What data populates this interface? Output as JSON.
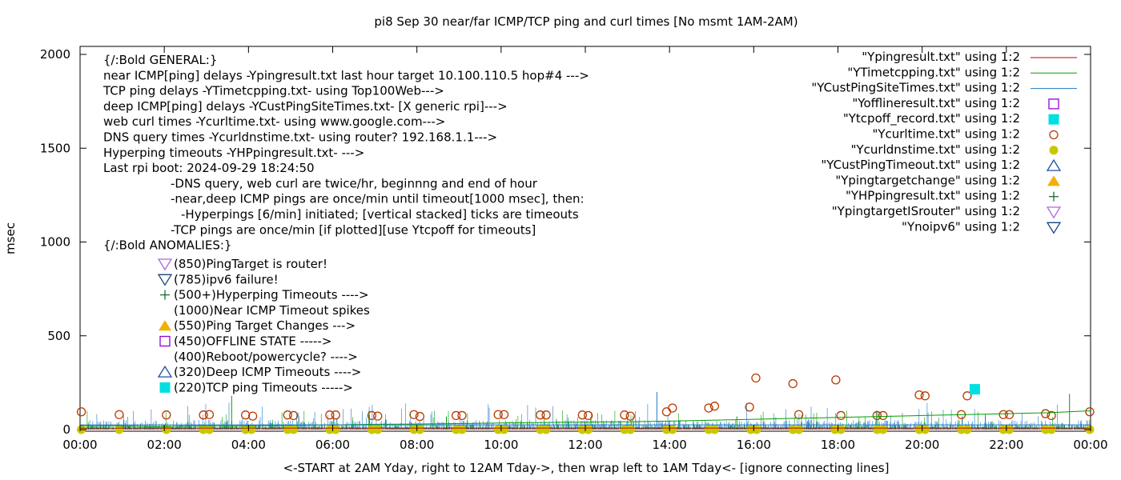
{
  "chart_data": {
    "type": "scatter",
    "title": "pi8 Sep 30  near/far ICMP/TCP ping and curl times [No msmt 1AM-2AM)",
    "xlabel": "<-START at 2AM Yday, right to 12AM Tday->, then wrap left to 1AM Tday<- [ignore connecting lines]",
    "ylabel": "msec",
    "xlim": [
      0,
      24
    ],
    "ylim": [
      0,
      2050
    ],
    "x_ticks": [
      {
        "value": 0,
        "label": "00:00"
      },
      {
        "value": 2,
        "label": "02:00"
      },
      {
        "value": 4,
        "label": "04:00"
      },
      {
        "value": 6,
        "label": "06:00"
      },
      {
        "value": 8,
        "label": "08:00"
      },
      {
        "value": 10,
        "label": "10:00"
      },
      {
        "value": 12,
        "label": "12:00"
      },
      {
        "value": 14,
        "label": "14:00"
      },
      {
        "value": 16,
        "label": "16:00"
      },
      {
        "value": 18,
        "label": "18:00"
      },
      {
        "value": 20,
        "label": "20:00"
      },
      {
        "value": 22,
        "label": "22:00"
      },
      {
        "value": 24,
        "label": "00:00"
      }
    ],
    "y_ticks": [
      {
        "value": 0,
        "label": "0"
      },
      {
        "value": 500,
        "label": "500"
      },
      {
        "value": 1000,
        "label": "1000"
      },
      {
        "value": 1500,
        "label": "1500"
      },
      {
        "value": 2000,
        "label": "2000"
      }
    ],
    "grid": false,
    "legend_position": "top-right",
    "annotations": [
      "{/:Bold GENERAL:}",
      "near ICMP[ping] delays -Ypingresult.txt last hour target 10.100.110.5 hop#4 --->",
      "TCP ping delays -YTimetcpping.txt- using Top100Web--->",
      "deep ICMP[ping] delays -YCustPingSiteTimes.txt- [X generic rpi]--->",
      "web curl times -Ycurltime.txt- using www.google.com--->",
      "DNS query times -Ycurldnstime.txt- using router? 192.168.1.1--->",
      "Hyperping timeouts -YHPpingresult.txt- --->",
      "Last rpi boot: 2024-09-29 18:24:50",
      "-DNS query, web curl are twice/hr, beginnng and end of hour",
      "-near,deep ICMP pings are once/min until timeout[1000 msec], then:",
      "-Hyperpings [6/min] initiated; [vertical stacked] ticks are timeouts",
      "-TCP pings are once/min [if plotted][use Ytcpoff for timeouts]",
      "{/:Bold ANOMALIES:}"
    ],
    "anomaly_keys": [
      {
        "text": "(850)PingTarget is router!",
        "marker": "triangle-down-open",
        "color": "#b266e6"
      },
      {
        "text": "(785)ipv6 failure!",
        "marker": "triangle-down-open",
        "color": "#18447a"
      },
      {
        "text": "(500+)Hyperping Timeouts ---->",
        "marker": "plus",
        "color": "#1a6b3a"
      },
      {
        "text": "(1000)Near ICMP Timeout spikes",
        "marker": "none",
        "color": "#000000"
      },
      {
        "text": "(550)Ping Target Changes --->",
        "marker": "triangle-up-filled",
        "color": "#f2b000"
      },
      {
        "text": "(450)OFFLINE STATE ----->",
        "marker": "square-open",
        "color": "#9400d3"
      },
      {
        "text": "(400)Reboot/powercycle? ---->",
        "marker": "none",
        "color": "#000000"
      },
      {
        "text": "(320)Deep ICMP Timeouts ---->",
        "marker": "triangle-up-open",
        "color": "#1f4fa8"
      },
      {
        "text": "(220)TCP ping Timeouts ----->",
        "marker": "square-filled",
        "color": "#00e0e0"
      }
    ],
    "legend": [
      {
        "label": "\"Ypingresult.txt\" using 1:2",
        "marker": "line",
        "color": "#c00000"
      },
      {
        "label": "\"YTimetcpping.txt\" using 1:2",
        "marker": "line",
        "color": "#009e00"
      },
      {
        "label": "\"YCustPingSiteTimes.txt\" using 1:2",
        "marker": "line",
        "color": "#1f78c8"
      },
      {
        "label": "\"Yofflineresult.txt\" using 1:2",
        "marker": "square-open",
        "color": "#9400d3"
      },
      {
        "label": "\"Ytcpoff_record.txt\" using 1:2",
        "marker": "square-filled",
        "color": "#00e0e0"
      },
      {
        "label": "\"Ycurltime.txt\" using 1:2",
        "marker": "circle-open",
        "color": "#b83a00"
      },
      {
        "label": "\"Ycurldnstime.txt\" using 1:2",
        "marker": "circle-filled",
        "color": "#c8c800"
      },
      {
        "label": "\"YCustPingTimeout.txt\" using 1:2",
        "marker": "triangle-up-open",
        "color": "#1f4fa8"
      },
      {
        "label": "\"Ypingtargetchange\" using 1:2",
        "marker": "triangle-up-filled",
        "color": "#f2b000"
      },
      {
        "label": "\"YHPpingresult.txt\" using 1:2",
        "marker": "plus",
        "color": "#1a6b3a"
      },
      {
        "label": "\"YpingtargetISrouter\" using 1:2",
        "marker": "triangle-down-open",
        "color": "#b266e6"
      },
      {
        "label": "\"Ynoipv6\" using 1:2",
        "marker": "triangle-down-open",
        "color": "#18447a"
      }
    ],
    "series": [
      {
        "name": "Ycurltime.txt",
        "marker": "circle-open",
        "color": "#b83a00",
        "x": [
          0.03,
          0.93,
          2.05,
          2.93,
          3.07,
          3.93,
          4.1,
          4.93,
          5.07,
          5.93,
          6.07,
          6.93,
          7.07,
          7.93,
          8.07,
          8.93,
          9.07,
          9.93,
          10.07,
          10.93,
          11.07,
          11.93,
          12.07,
          12.93,
          13.07,
          13.93,
          14.07,
          14.93,
          15.07,
          15.9,
          16.05,
          16.93,
          17.07,
          17.95,
          18.07,
          18.93,
          19.07,
          19.93,
          20.07,
          20.93,
          21.07,
          21.93,
          22.07,
          22.93,
          23.07,
          23.98
        ],
        "y": [
          95,
          80,
          78,
          78,
          80,
          78,
          72,
          78,
          75,
          78,
          78,
          75,
          72,
          80,
          70,
          75,
          75,
          80,
          80,
          78,
          78,
          78,
          75,
          78,
          72,
          95,
          115,
          115,
          125,
          120,
          275,
          245,
          80,
          265,
          75,
          75,
          75,
          185,
          180,
          80,
          180,
          80,
          80,
          85,
          75,
          95
        ]
      },
      {
        "name": "Ycurldnstime.txt",
        "marker": "circle-filled",
        "color": "#c8c800",
        "x": [
          0.03,
          0.93,
          2.05,
          2.93,
          3.07,
          3.93,
          4.07,
          4.93,
          5.07,
          5.93,
          6.07,
          6.93,
          7.07,
          7.93,
          8.07,
          8.93,
          9.07,
          9.93,
          10.07,
          10.93,
          11.07,
          11.93,
          12.07,
          12.93,
          13.07,
          13.93,
          14.07,
          14.93,
          15.07,
          15.93,
          16.07,
          16.93,
          17.07,
          17.93,
          18.07,
          18.93,
          19.07,
          19.93,
          20.07,
          20.93,
          21.07,
          21.93,
          22.07,
          22.93,
          23.07,
          23.98
        ],
        "y": [
          0,
          0,
          0,
          0,
          0,
          0,
          0,
          0,
          0,
          0,
          0,
          0,
          0,
          0,
          0,
          0,
          0,
          0,
          0,
          0,
          0,
          0,
          0,
          0,
          0,
          0,
          0,
          0,
          0,
          0,
          0,
          0,
          0,
          0,
          0,
          0,
          0,
          0,
          0,
          0,
          0,
          0,
          0,
          0,
          0,
          0
        ]
      },
      {
        "name": "Ytcpoff_record.txt",
        "marker": "square-filled",
        "color": "#00e0e0",
        "x": [
          21.25
        ],
        "y": [
          215
        ]
      },
      {
        "name": "YTimetcpping.txt",
        "marker": "line",
        "color": "#009e00",
        "x": [
          0,
          1,
          1.9,
          2.6,
          3.2,
          4,
          5,
          6,
          7,
          8,
          9,
          10,
          11,
          12,
          13,
          14,
          15,
          16,
          17,
          18,
          19,
          20,
          21,
          22,
          23,
          24
        ],
        "y": [
          20,
          20,
          15,
          20,
          20,
          20,
          22,
          25,
          28,
          30,
          32,
          35,
          38,
          40,
          42,
          45,
          50,
          55,
          60,
          65,
          70,
          75,
          80,
          85,
          90,
          100
        ]
      },
      {
        "name": "Ypingresult.txt",
        "marker": "line",
        "color": "#c00000",
        "x": [
          0,
          4,
          8,
          12,
          16,
          20,
          24
        ],
        "y": [
          8,
          8,
          8,
          8,
          8,
          8,
          8
        ]
      },
      {
        "name": "YCustPingSiteTimes.txt",
        "marker": "line",
        "color": "#1f78c8",
        "x": [
          0,
          24
        ],
        "y": [
          25,
          25
        ]
      }
    ]
  }
}
